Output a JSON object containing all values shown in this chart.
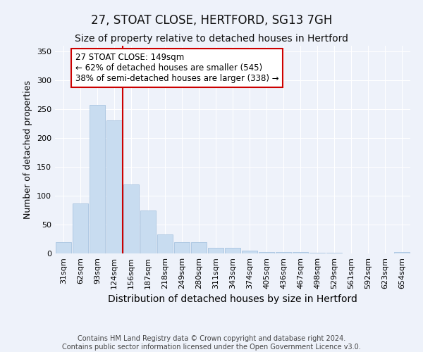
{
  "title": "27, STOAT CLOSE, HERTFORD, SG13 7GH",
  "subtitle": "Size of property relative to detached houses in Hertford",
  "xlabel": "Distribution of detached houses by size in Hertford",
  "ylabel": "Number of detached properties",
  "categories": [
    "31sqm",
    "62sqm",
    "93sqm",
    "124sqm",
    "156sqm",
    "187sqm",
    "218sqm",
    "249sqm",
    "280sqm",
    "311sqm",
    "343sqm",
    "374sqm",
    "405sqm",
    "436sqm",
    "467sqm",
    "498sqm",
    "529sqm",
    "561sqm",
    "592sqm",
    "623sqm",
    "654sqm"
  ],
  "values": [
    20,
    87,
    257,
    231,
    120,
    75,
    33,
    20,
    20,
    10,
    10,
    5,
    3,
    3,
    2,
    1,
    1,
    0,
    0,
    0,
    2
  ],
  "bar_color": "#c8dcf0",
  "bar_edge_color": "#a8c4e0",
  "vline_color": "#cc0000",
  "vline_x_index": 4,
  "annotation_text": "27 STOAT CLOSE: 149sqm\n← 62% of detached houses are smaller (545)\n38% of semi-detached houses are larger (338) →",
  "annotation_box_color": "#ffffff",
  "annotation_box_edge": "#cc0000",
  "ylim": [
    0,
    360
  ],
  "yticks": [
    0,
    50,
    100,
    150,
    200,
    250,
    300,
    350
  ],
  "background_color": "#eef2fa",
  "grid_color": "#ffffff",
  "footer": "Contains HM Land Registry data © Crown copyright and database right 2024.\nContains public sector information licensed under the Open Government Licence v3.0.",
  "title_fontsize": 12,
  "subtitle_fontsize": 10,
  "xlabel_fontsize": 10,
  "ylabel_fontsize": 9,
  "tick_fontsize": 8,
  "footer_fontsize": 7,
  "annot_fontsize": 8.5
}
